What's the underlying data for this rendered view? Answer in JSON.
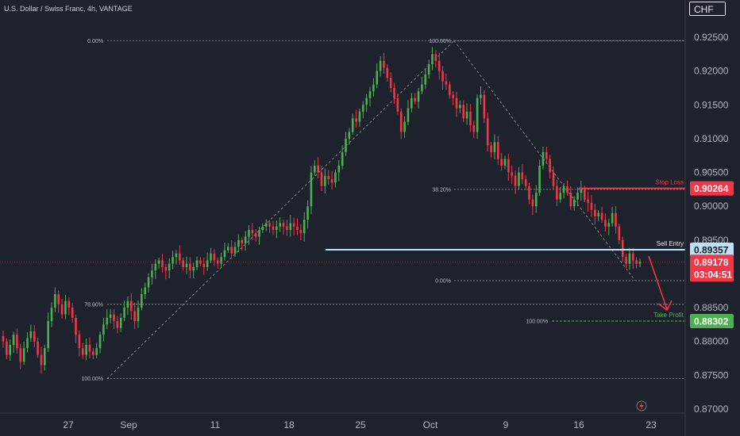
{
  "header": {
    "title": "U.S. Dollar / Swiss Franc, 4h, VANTAGE",
    "currency": "CHF"
  },
  "chart_data": {
    "type": "candlestick",
    "title": "U.S. Dollar / Swiss Franc, 4h, VANTAGE",
    "ylim": [
      0.87,
      0.927
    ],
    "y_ticks": [
      "0.92500",
      "0.92000",
      "0.91500",
      "0.91000",
      "0.90500",
      "0.90000",
      "0.89500",
      "0.89000",
      "0.88500",
      "0.88000",
      "0.87500",
      "0.87000"
    ],
    "x_ticks": [
      "27",
      "Sep",
      "11",
      "18",
      "25",
      "Oct",
      "9",
      "16",
      "23"
    ],
    "grid": false,
    "close_series": [
      0.88,
      0.878,
      0.8795,
      0.881,
      0.879,
      0.877,
      0.879,
      0.8805,
      0.8815,
      0.88,
      0.878,
      0.8765,
      0.879,
      0.883,
      0.885,
      0.887,
      0.8855,
      0.884,
      0.886,
      0.885,
      0.8835,
      0.881,
      0.879,
      0.878,
      0.8795,
      0.8785,
      0.878,
      0.879,
      0.881,
      0.8825,
      0.8835,
      0.884,
      0.883,
      0.882,
      0.8835,
      0.885,
      0.886,
      0.8845,
      0.883,
      0.885,
      0.887,
      0.888,
      0.8895,
      0.8905,
      0.8915,
      0.892,
      0.891,
      0.8905,
      0.8915,
      0.8925,
      0.893,
      0.892,
      0.891,
      0.8915,
      0.8905,
      0.891,
      0.892,
      0.8915,
      0.891,
      0.892,
      0.893,
      0.892,
      0.8915,
      0.8925,
      0.8935,
      0.894,
      0.893,
      0.894,
      0.895,
      0.8945,
      0.8955,
      0.8965,
      0.896,
      0.8955,
      0.8965,
      0.897,
      0.8975,
      0.897,
      0.8965,
      0.897,
      0.8975,
      0.897,
      0.8965,
      0.8975,
      0.897,
      0.8965,
      0.896,
      0.898,
      0.9,
      0.905,
      0.906,
      0.905,
      0.903,
      0.9045,
      0.904,
      0.9035,
      0.905,
      0.906,
      0.908,
      0.91,
      0.911,
      0.913,
      0.9125,
      0.914,
      0.915,
      0.916,
      0.917,
      0.918,
      0.92,
      0.9215,
      0.9205,
      0.919,
      0.9175,
      0.916,
      0.914,
      0.911,
      0.9125,
      0.9145,
      0.916,
      0.9155,
      0.917,
      0.918,
      0.9195,
      0.921,
      0.9225,
      0.9215,
      0.92,
      0.9185,
      0.918,
      0.9165,
      0.916,
      0.9145,
      0.915,
      0.913,
      0.914,
      0.912,
      0.911,
      0.916,
      0.9165,
      0.913,
      0.909,
      0.908,
      0.9095,
      0.907,
      0.906,
      0.907,
      0.905,
      0.9045,
      0.903,
      0.905,
      0.904,
      0.903,
      0.901,
      0.9,
      0.902,
      0.906,
      0.908,
      0.907,
      0.905,
      0.903,
      0.901,
      0.902,
      0.903,
      0.902,
      0.9,
      0.901,
      0.902,
      0.9025,
      0.901,
      0.9005,
      0.8995,
      0.8985,
      0.899,
      0.898,
      0.897,
      0.8975,
      0.899,
      0.897,
      0.895,
      0.8925,
      0.8915,
      0.893,
      0.892,
      0.8915,
      0.8918
    ]
  },
  "fibonacci_up": {
    "levels": [
      {
        "label": "0.00%",
        "price": 0.9245
      },
      {
        "label": "78.60%",
        "price": 0.8855
      },
      {
        "label": "100.00%",
        "price": 0.8745
      }
    ]
  },
  "fibonacci_down": {
    "levels": [
      {
        "label": "100.00%",
        "price": 0.9245
      },
      {
        "label": "38.20%",
        "price": 0.9025
      },
      {
        "label": "0.00%",
        "price": 0.889
      }
    ]
  },
  "trade_setup": {
    "stop_loss": {
      "label": "Stop Loss",
      "price": "0.90264",
      "value": 0.90264,
      "color": "#f23645"
    },
    "sell_entry": {
      "label": "Sell Entry",
      "price": "0.89357",
      "value": 0.89357,
      "color": "#bfe1f5"
    },
    "current": {
      "price": "0.89178",
      "value": 0.89178,
      "countdown": "03:04:51",
      "color": "#f23645"
    },
    "take_profit": {
      "label": "Take Profit",
      "fib_label": "100.00%",
      "price": "0.88302",
      "value": 0.88302,
      "color": "#4caf50"
    }
  },
  "colors": {
    "background": "#1e222d",
    "up": "#4caf50",
    "down": "#f23645",
    "fib": "#9598a1"
  }
}
